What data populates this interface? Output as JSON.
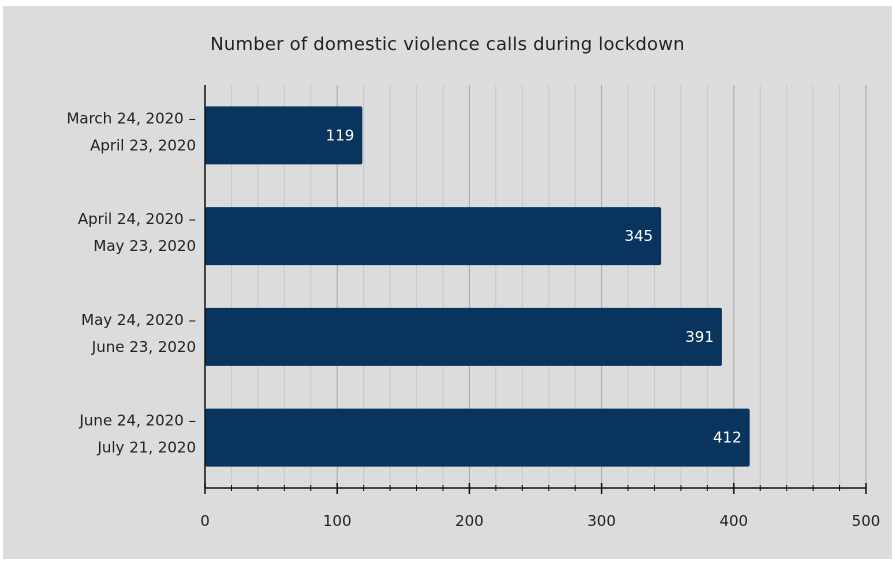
{
  "chart_data": {
    "type": "bar",
    "orientation": "horizontal",
    "title": "Number of domestic violence calls during lockdown",
    "categories": [
      [
        "March 24, 2020 –",
        "April 23, 2020"
      ],
      [
        "April 24, 2020 –",
        "May 23, 2020"
      ],
      [
        "May 24, 2020 –",
        "June 23, 2020"
      ],
      [
        "June 24, 2020 –",
        "July 21, 2020"
      ]
    ],
    "values": [
      119,
      345,
      391,
      412
    ],
    "xlim": [
      0,
      500
    ],
    "xticks": [
      0,
      100,
      200,
      300,
      400,
      500
    ],
    "xlabel": "",
    "ylabel": "",
    "grid": "vertical",
    "legend": "none",
    "bar_color": "#08345e",
    "background_color": "#dcdcdc"
  }
}
